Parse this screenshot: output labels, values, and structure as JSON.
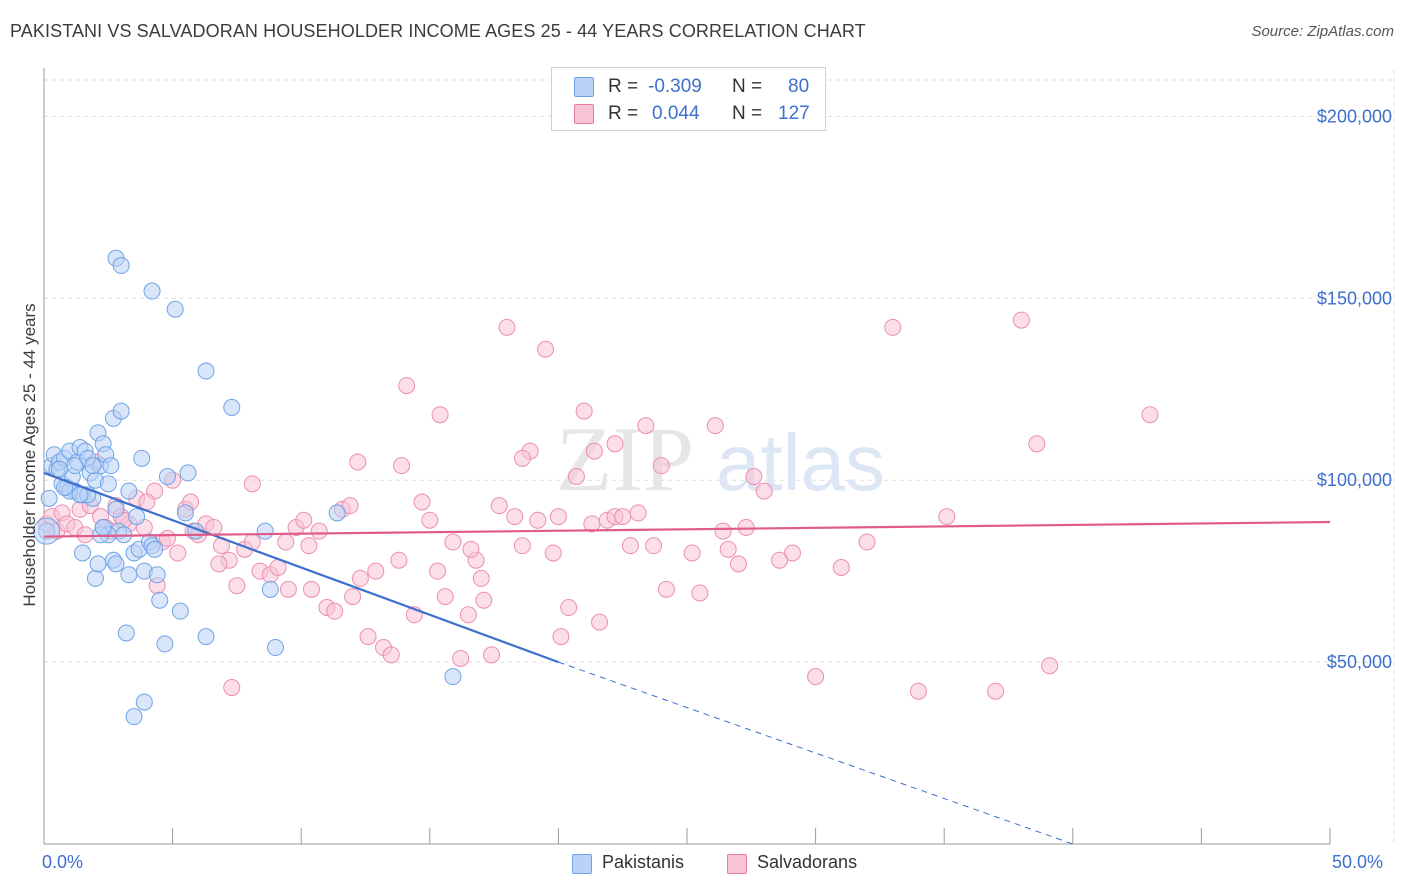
{
  "title": "PAKISTANI VS SALVADORAN HOUSEHOLDER INCOME AGES 25 - 44 YEARS CORRELATION CHART",
  "source": "Source: ZipAtlas.com",
  "watermark": {
    "zip": "ZIP",
    "atlas": "atlas"
  },
  "legend_top": {
    "rows": [
      {
        "r_label": "R =",
        "r_value": "-0.309",
        "n_label": "N =",
        "n_value": "80",
        "color": "#6fa3e8",
        "fill": "#b9d2f5"
      },
      {
        "r_label": "R =",
        "r_value": "0.044",
        "n_label": "N =",
        "n_value": "127",
        "color": "#e87aa0",
        "fill": "#f8c3d5"
      }
    ]
  },
  "legend_bottom": {
    "items": [
      {
        "label": "Pakistanis",
        "fill": "#b9d2f5",
        "color": "#6fa3e8"
      },
      {
        "label": "Salvadorans",
        "fill": "#f8c3d5",
        "color": "#e87aa0"
      }
    ]
  },
  "colors": {
    "blue": "#3d6fcc",
    "blue_point": "#6fa3e8",
    "pink_line": "#e05a8a",
    "pink_point": "#ec8fb0",
    "grid": "#dddddd"
  },
  "chart_data": {
    "type": "scatter",
    "title": "PAKISTANI VS SALVADORAN HOUSEHOLDER INCOME AGES 25 - 44 YEARS CORRELATION CHART",
    "xlabel": "",
    "ylabel": "Householder Income Ages 25 - 44 years",
    "xlim": [
      0,
      50
    ],
    "ylim": [
      0,
      210000
    ],
    "x_tick_labels": [
      "0.0%",
      "50.0%"
    ],
    "y_ticks": [
      50000,
      100000,
      150000,
      200000
    ],
    "y_tick_labels": [
      "$50,000",
      "$100,000",
      "$150,000",
      "$200,000"
    ],
    "grid": true,
    "legend_position": "top-center",
    "series": [
      {
        "name": "Pakistanis",
        "r": -0.309,
        "n": 80,
        "trend": {
          "x0": 0,
          "y0": 102000,
          "x1": 20,
          "y1": 50000,
          "dashed_to_x": 40,
          "dashed_to_y": 0
        },
        "points": [
          [
            0.1,
            86000
          ],
          [
            0.2,
            95000
          ],
          [
            0.3,
            104000
          ],
          [
            0.4,
            107000
          ],
          [
            0.5,
            103000
          ],
          [
            0.6,
            105000
          ],
          [
            0.7,
            99000
          ],
          [
            0.8,
            106000
          ],
          [
            0.9,
            98000
          ],
          [
            1.0,
            108000
          ],
          [
            1.1,
            101000
          ],
          [
            1.2,
            97000
          ],
          [
            1.3,
            105000
          ],
          [
            1.4,
            109000
          ],
          [
            1.5,
            96000
          ],
          [
            1.6,
            108000
          ],
          [
            1.7,
            106000
          ],
          [
            1.8,
            102000
          ],
          [
            1.9,
            95000
          ],
          [
            2.0,
            100000
          ],
          [
            2.1,
            113000
          ],
          [
            2.2,
            104000
          ],
          [
            2.3,
            110000
          ],
          [
            2.4,
            107000
          ],
          [
            2.6,
            104000
          ],
          [
            2.7,
            117000
          ],
          [
            2.8,
            92000
          ],
          [
            2.9,
            86000
          ],
          [
            3.0,
            119000
          ],
          [
            3.1,
            85000
          ],
          [
            1.5,
            80000
          ],
          [
            2.0,
            73000
          ],
          [
            2.1,
            77000
          ],
          [
            2.3,
            87000
          ],
          [
            2.5,
            85000
          ],
          [
            2.7,
            78000
          ],
          [
            2.8,
            77000
          ],
          [
            3.3,
            74000
          ],
          [
            3.5,
            80000
          ],
          [
            3.7,
            81000
          ],
          [
            3.9,
            75000
          ],
          [
            4.1,
            83000
          ],
          [
            4.2,
            82000
          ],
          [
            4.4,
            74000
          ],
          [
            4.5,
            67000
          ],
          [
            4.7,
            55000
          ],
          [
            3.2,
            58000
          ],
          [
            3.5,
            35000
          ],
          [
            3.9,
            39000
          ],
          [
            4.8,
            101000
          ],
          [
            5.5,
            91000
          ],
          [
            5.6,
            102000
          ],
          [
            5.9,
            86000
          ],
          [
            6.3,
            57000
          ],
          [
            5.3,
            64000
          ],
          [
            4.3,
            81000
          ],
          [
            2.8,
            161000
          ],
          [
            3.0,
            159000
          ],
          [
            4.2,
            152000
          ],
          [
            5.1,
            147000
          ],
          [
            6.3,
            130000
          ],
          [
            7.3,
            120000
          ],
          [
            9.0,
            54000
          ],
          [
            8.8,
            70000
          ],
          [
            8.6,
            86000
          ],
          [
            11.4,
            91000
          ],
          [
            15.9,
            46000
          ],
          [
            1.0,
            97000
          ],
          [
            1.2,
            104000
          ],
          [
            0.8,
            98000
          ],
          [
            1.7,
            96000
          ],
          [
            3.8,
            106000
          ],
          [
            3.3,
            97000
          ],
          [
            2.2,
            85000
          ],
          [
            1.4,
            96000
          ],
          [
            2.5,
            99000
          ],
          [
            0.6,
            103000
          ],
          [
            1.9,
            104000
          ],
          [
            3.6,
            90000
          ],
          [
            2.3,
            87000
          ]
        ]
      },
      {
        "name": "Salvadorans",
        "r": 0.044,
        "n": 127,
        "trend": {
          "x0": 0,
          "y0": 84500,
          "x1": 50,
          "y1": 88500
        },
        "points": [
          [
            0.1,
            88000
          ],
          [
            0.3,
            90000
          ],
          [
            0.5,
            86000
          ],
          [
            0.7,
            91000
          ],
          [
            0.9,
            88000
          ],
          [
            1.2,
            87000
          ],
          [
            1.4,
            92000
          ],
          [
            1.6,
            85000
          ],
          [
            1.8,
            93000
          ],
          [
            2.0,
            105000
          ],
          [
            2.2,
            90000
          ],
          [
            2.4,
            87000
          ],
          [
            2.6,
            86000
          ],
          [
            2.8,
            93000
          ],
          [
            3.0,
            90000
          ],
          [
            3.3,
            88000
          ],
          [
            3.6,
            95000
          ],
          [
            3.9,
            87000
          ],
          [
            4.3,
            97000
          ],
          [
            4.4,
            71000
          ],
          [
            4.6,
            83000
          ],
          [
            4.8,
            84000
          ],
          [
            5.0,
            100000
          ],
          [
            5.2,
            80000
          ],
          [
            5.5,
            92000
          ],
          [
            5.8,
            86000
          ],
          [
            6.0,
            85000
          ],
          [
            6.3,
            88000
          ],
          [
            6.6,
            87000
          ],
          [
            6.9,
            82000
          ],
          [
            7.2,
            78000
          ],
          [
            7.5,
            71000
          ],
          [
            7.8,
            81000
          ],
          [
            8.1,
            99000
          ],
          [
            8.4,
            75000
          ],
          [
            8.8,
            74000
          ],
          [
            9.1,
            76000
          ],
          [
            9.4,
            83000
          ],
          [
            9.8,
            87000
          ],
          [
            10.1,
            89000
          ],
          [
            10.4,
            70000
          ],
          [
            10.7,
            86000
          ],
          [
            11.0,
            65000
          ],
          [
            11.3,
            64000
          ],
          [
            11.6,
            92000
          ],
          [
            12.0,
            68000
          ],
          [
            12.3,
            73000
          ],
          [
            12.6,
            57000
          ],
          [
            12.9,
            75000
          ],
          [
            13.2,
            54000
          ],
          [
            13.5,
            52000
          ],
          [
            13.8,
            78000
          ],
          [
            14.1,
            126000
          ],
          [
            14.4,
            63000
          ],
          [
            14.7,
            94000
          ],
          [
            15.0,
            89000
          ],
          [
            15.3,
            75000
          ],
          [
            15.6,
            68000
          ],
          [
            15.9,
            83000
          ],
          [
            16.2,
            51000
          ],
          [
            16.5,
            63000
          ],
          [
            16.8,
            78000
          ],
          [
            17.1,
            67000
          ],
          [
            17.4,
            52000
          ],
          [
            17.7,
            93000
          ],
          [
            18.0,
            142000
          ],
          [
            18.3,
            90000
          ],
          [
            18.6,
            82000
          ],
          [
            18.9,
            108000
          ],
          [
            19.2,
            89000
          ],
          [
            19.5,
            136000
          ],
          [
            19.8,
            80000
          ],
          [
            20.1,
            57000
          ],
          [
            20.4,
            65000
          ],
          [
            20.7,
            101000
          ],
          [
            21.0,
            119000
          ],
          [
            21.3,
            88000
          ],
          [
            21.6,
            61000
          ],
          [
            21.9,
            89000
          ],
          [
            22.2,
            90000
          ],
          [
            22.5,
            90000
          ],
          [
            22.8,
            82000
          ],
          [
            23.1,
            91000
          ],
          [
            23.4,
            115000
          ],
          [
            23.7,
            82000
          ],
          [
            24.0,
            104000
          ],
          [
            25.2,
            80000
          ],
          [
            25.5,
            69000
          ],
          [
            26.1,
            115000
          ],
          [
            26.4,
            86000
          ],
          [
            27.0,
            77000
          ],
          [
            27.3,
            87000
          ],
          [
            27.6,
            101000
          ],
          [
            28.0,
            97000
          ],
          [
            29.1,
            80000
          ],
          [
            30.0,
            46000
          ],
          [
            31.0,
            76000
          ],
          [
            32.0,
            83000
          ],
          [
            33.0,
            142000
          ],
          [
            34.0,
            42000
          ],
          [
            35.1,
            90000
          ],
          [
            37.0,
            42000
          ],
          [
            38.0,
            144000
          ],
          [
            38.6,
            110000
          ],
          [
            39.1,
            49000
          ],
          [
            43.0,
            118000
          ],
          [
            7.3,
            43000
          ],
          [
            8.1,
            83000
          ],
          [
            11.9,
            93000
          ],
          [
            12.2,
            105000
          ],
          [
            13.9,
            104000
          ],
          [
            15.4,
            118000
          ],
          [
            16.6,
            81000
          ],
          [
            17.0,
            73000
          ],
          [
            18.6,
            106000
          ],
          [
            20.0,
            90000
          ],
          [
            21.4,
            108000
          ],
          [
            22.2,
            110000
          ],
          [
            24.2,
            70000
          ],
          [
            26.6,
            81000
          ],
          [
            10.3,
            82000
          ],
          [
            9.5,
            70000
          ],
          [
            6.8,
            77000
          ],
          [
            5.7,
            94000
          ],
          [
            4.0,
            94000
          ],
          [
            3.1,
            89000
          ],
          [
            28.6,
            78000
          ]
        ]
      }
    ]
  }
}
